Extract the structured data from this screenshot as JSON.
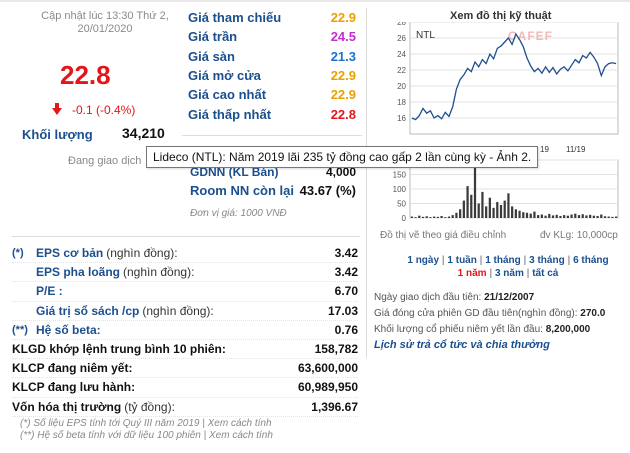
{
  "update_text": "Cập nhật lúc 13:30 Thứ 2, 20/01/2020",
  "price": "22.8",
  "change": "-0.1 (-0.4%)",
  "volume": {
    "label": "Khối lượng",
    "value": "34,210"
  },
  "trading_status": "Đang giao dịch",
  "price_list": [
    {
      "label": "Giá tham chiếu",
      "value": "22.9",
      "color": "#e8a200"
    },
    {
      "label": "Giá trần",
      "value": "24.5",
      "color": "#c22fcf"
    },
    {
      "label": "Giá sàn",
      "value": "21.3",
      "color": "#1e6fd0"
    },
    {
      "label": "Giá mở cửa",
      "value": "22.9",
      "color": "#e8a200"
    },
    {
      "label": "Giá cao nhất",
      "value": "22.9",
      "color": "#e8a200"
    },
    {
      "label": "Giá thấp nhất",
      "value": "22.8",
      "color": "#e2161b"
    }
  ],
  "foreign": {
    "gdnn_label": "GDNN (KL Bán)",
    "gdnn_value": "4,000",
    "room_label": "Room NN còn lại",
    "room_value": "43.67 (%)"
  },
  "unit_note": "Đơn vị giá: 1000 VNĐ",
  "tooltip": "Lideco (NTL): Năm 2019 lãi 235 tỷ đồng cao gấp 2 lần cùng kỳ - Ảnh 2.",
  "chart": {
    "title": "Xem đồ thị kỹ thuật",
    "symbol": "NTL",
    "watermark": "CAFEF",
    "month_labels": [
      "19",
      "11/19"
    ],
    "note": "Đồ thị vẽ theo giá điều chỉnh",
    "vol_unit": "đv KLg: 10,000cp",
    "chart_data": {
      "type": "line",
      "price_axis": {
        "ylim": [
          14,
          28
        ],
        "ticks": [
          16,
          18,
          20,
          22,
          24,
          26,
          28
        ]
      },
      "price": [
        16.0,
        15.8,
        16.3,
        17.2,
        16.6,
        16.9,
        16.0,
        16.3,
        15.9,
        16.7,
        16.2,
        17.4,
        19.6,
        20.8,
        21.4,
        22.2,
        21.8,
        23.0,
        22.4,
        23.3,
        22.8,
        24.0,
        23.4,
        24.7,
        25.0,
        25.5,
        26.0,
        25.2,
        26.5,
        25.8,
        24.9,
        23.5,
        22.5,
        21.8,
        22.2,
        21.6,
        22.4,
        21.7,
        22.3,
        21.5,
        22.1,
        22.4,
        21.9,
        22.6,
        23.3,
        22.9,
        23.8,
        23.5,
        24.2,
        23.6,
        22.8,
        21.3,
        22.4,
        22.8,
        22.9,
        22.8
      ],
      "volume_axis": {
        "ylim": [
          0,
          200
        ],
        "ticks": [
          0,
          50,
          100,
          150,
          200
        ]
      },
      "volume": [
        5,
        3,
        8,
        4,
        6,
        3,
        5,
        4,
        7,
        3,
        5,
        10,
        18,
        30,
        60,
        110,
        80,
        180,
        50,
        90,
        40,
        70,
        35,
        55,
        45,
        60,
        85,
        40,
        30,
        25,
        20,
        18,
        15,
        22,
        10,
        12,
        8,
        14,
        9,
        11,
        7,
        10,
        8,
        12,
        15,
        10,
        13,
        9,
        11,
        8,
        7,
        12,
        6,
        5,
        4,
        5
      ]
    }
  },
  "periods": [
    {
      "label": "1 ngày",
      "active": false
    },
    {
      "label": "1 tuần",
      "active": false
    },
    {
      "label": "1 tháng",
      "active": false
    },
    {
      "label": "3 tháng",
      "active": false
    },
    {
      "label": "6 tháng",
      "active": false
    },
    {
      "label": "1 năm",
      "active": true
    },
    {
      "label": "3 năm",
      "active": false
    },
    {
      "label": "tất cả",
      "active": false
    }
  ],
  "listing_info": {
    "first_trade_label": "Ngày giao dịch đầu tiên:",
    "first_trade_value": "21/12/2007",
    "first_price_label": "Giá đóng cửa phiên GD đầu tiên(nghìn đồng):",
    "first_price_value": "270.0",
    "first_volume_label": "Khối lượng cổ phiếu niêm yết lần đầu:",
    "first_volume_value": "8,200,000"
  },
  "history_link": "Lịch sử trả cổ tức và chia thưởng",
  "fundamentals": [
    {
      "marker": "(*)",
      "label": "EPS cơ bản",
      "sub": "(nghìn đồng):",
      "value": "3.42"
    },
    {
      "marker": "",
      "label": "EPS pha loãng",
      "sub": "(nghìn đồng):",
      "value": "3.42"
    },
    {
      "marker": "",
      "label": "P/E :",
      "sub": "",
      "value": "6.70"
    },
    {
      "marker": "",
      "label": "Giá trị sổ sách /cp",
      "sub": "(nghìn đồng):",
      "value": "17.03"
    },
    {
      "marker": "(**)",
      "label": "Hệ số beta:",
      "sub": "",
      "value": "0.76"
    },
    {
      "marker": "",
      "label": "KLGD khớp lệnh trung bình 10 phiên:",
      "sub": "",
      "value": "158,782"
    },
    {
      "marker": "",
      "label": "KLCP đang niêm yết:",
      "sub": "",
      "value": "63,600,000"
    },
    {
      "marker": "",
      "label": "KLCP đang lưu hành:",
      "sub": "",
      "value": "60,989,950"
    },
    {
      "marker": "",
      "label": "Vốn hóa thị trường",
      "sub": "(tỷ đồng):",
      "value": "1,396.67"
    }
  ],
  "notes": [
    "(*) Số liệu EPS tính tới Quý III năm 2019 | Xem cách tính",
    "(**) Hệ số beta tính với dữ liệu 100 phiên | Xem cách tính"
  ]
}
